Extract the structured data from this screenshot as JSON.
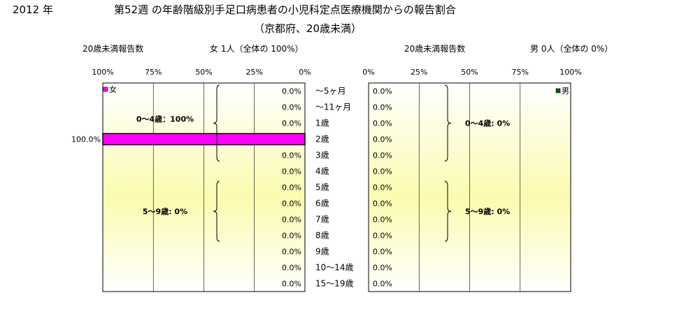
{
  "header": {
    "year": "2012 年",
    "title_line1": "第52週 の年齢階級別手足口病患者の小児科定点医療機関からの報告割合",
    "title_line2": "（京都府、20歳未満）"
  },
  "chart_data": [
    {
      "type": "bar",
      "orientation": "horizontal",
      "panel": "female",
      "count_label": "20歳未満報告数",
      "summary": "女 1人（全体の 100%）",
      "legend": "女",
      "axis_ticks": [
        "100%",
        "75%",
        "50%",
        "25%",
        "0%"
      ],
      "xlim": [
        0,
        100
      ],
      "axis_reversed": true,
      "categories": [
        "～5ヶ月",
        "～11ヶ月",
        "1歳",
        "2歳",
        "3歳",
        "4歳",
        "5歳",
        "6歳",
        "7歳",
        "8歳",
        "9歳",
        "10～14歳",
        "15～19歳"
      ],
      "values": [
        0,
        0,
        0,
        100,
        0,
        0,
        0,
        0,
        0,
        0,
        0,
        0,
        0
      ],
      "value_labels": [
        "0.0%",
        "0.0%",
        "0.0%",
        "100.0%",
        "0.0%",
        "0.0%",
        "0.0%",
        "0.0%",
        "0.0%",
        "0.0%",
        "0.0%",
        "0.0%",
        "0.0%"
      ],
      "groups": [
        {
          "label": "0～4歳：100%",
          "from": 0,
          "to": 5
        },
        {
          "label": "5～9歳:  0%",
          "from": 6,
          "to": 10
        }
      ],
      "bar_color": "#ff00ff"
    },
    {
      "type": "bar",
      "orientation": "horizontal",
      "panel": "male",
      "count_label": "20歳未満報告数",
      "summary": "男  0人（全体の  0%）",
      "legend": "男",
      "axis_ticks": [
        "0%",
        "25%",
        "50%",
        "75%",
        "100%"
      ],
      "xlim": [
        0,
        100
      ],
      "axis_reversed": false,
      "categories": [
        "～5ヶ月",
        "～11ヶ月",
        "1歳",
        "2歳",
        "3歳",
        "4歳",
        "5歳",
        "6歳",
        "7歳",
        "8歳",
        "9歳",
        "10～14歳",
        "15～19歳"
      ],
      "values": [
        0,
        0,
        0,
        0,
        0,
        0,
        0,
        0,
        0,
        0,
        0,
        0,
        0
      ],
      "value_labels": [
        "0.0%",
        "0.0%",
        "0.0%",
        "0.0%",
        "0.0%",
        "0.0%",
        "0.0%",
        "0.0%",
        "0.0%",
        "0.0%",
        "0.0%",
        "0.0%",
        "0.0%"
      ],
      "groups": [
        {
          "label": "0～4歳:  0%",
          "from": 0,
          "to": 5
        },
        {
          "label": "5～9歳:  0%",
          "from": 6,
          "to": 10
        }
      ],
      "bar_color": "#006400"
    }
  ]
}
